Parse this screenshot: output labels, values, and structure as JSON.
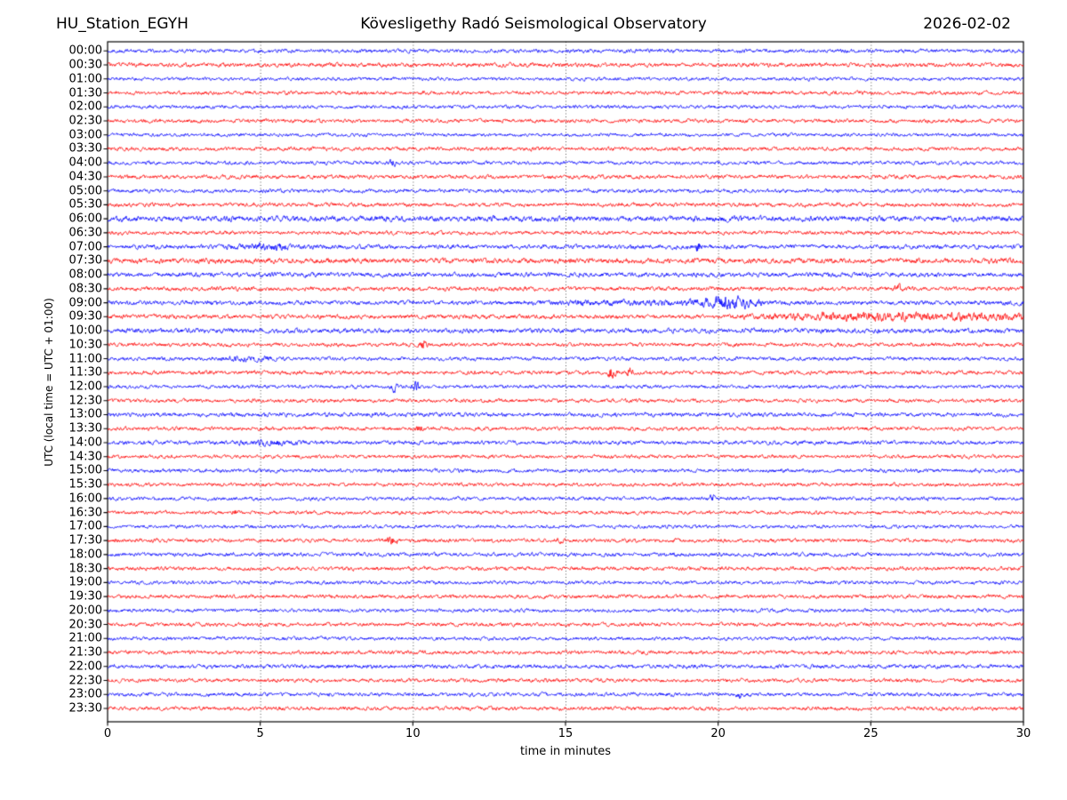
{
  "header": {
    "station": "HU_Station_EGYH",
    "observatory": "Kövesligethy Radó Seismological Observatory",
    "date": "2026-02-02"
  },
  "axes": {
    "x_label": "time in minutes",
    "y_label": "UTC (local time = UTC + 01:00)",
    "x_ticks": [
      "0",
      "5",
      "10",
      "15",
      "20",
      "25",
      "30"
    ],
    "x_tick_values": [
      0,
      5,
      10,
      15,
      20,
      25,
      30
    ],
    "x_range": [
      0,
      30
    ],
    "gridlines_minutes": [
      5,
      10,
      15,
      20,
      25
    ],
    "grid_style": "dotted-vertical"
  },
  "chart_data": {
    "type": "line",
    "subtype": "helicorder-daily-seismogram",
    "title": "Kövesligethy Radó Seismological Observatory",
    "station": "HU_Station_EGYH",
    "date": "2026-02-02",
    "xlabel": "time in minutes",
    "ylabel": "UTC (local time = UTC + 01:00)",
    "x_range": [
      0,
      30
    ],
    "minutes_per_row": 30,
    "rows_count": 48,
    "trace_colors": {
      "blue": "#0000ff",
      "red": "#ff0000"
    },
    "color_rule": "traces alternate: blue on the hour, red on the half hour",
    "rows": [
      {
        "label": "00:00",
        "color": "blue",
        "amp": 1.0
      },
      {
        "label": "00:30",
        "color": "red",
        "amp": 1.1
      },
      {
        "label": "01:00",
        "color": "blue",
        "amp": 0.9
      },
      {
        "label": "01:30",
        "color": "red",
        "amp": 1.0
      },
      {
        "label": "02:00",
        "color": "blue",
        "amp": 0.95
      },
      {
        "label": "02:30",
        "color": "red",
        "amp": 1.0
      },
      {
        "label": "03:00",
        "color": "blue",
        "amp": 0.9
      },
      {
        "label": "03:30",
        "color": "red",
        "amp": 1.0
      },
      {
        "label": "04:00",
        "color": "blue",
        "amp": 0.95
      },
      {
        "label": "04:30",
        "color": "red",
        "amp": 1.05
      },
      {
        "label": "05:00",
        "color": "blue",
        "amp": 1.0
      },
      {
        "label": "05:30",
        "color": "red",
        "amp": 1.05
      },
      {
        "label": "06:00",
        "color": "blue",
        "amp": 1.45
      },
      {
        "label": "06:30",
        "color": "red",
        "amp": 1.0
      },
      {
        "label": "07:00",
        "color": "blue",
        "amp": 1.15
      },
      {
        "label": "07:30",
        "color": "red",
        "amp": 1.35
      },
      {
        "label": "08:00",
        "color": "blue",
        "amp": 1.2
      },
      {
        "label": "08:30",
        "color": "red",
        "amp": 1.1
      },
      {
        "label": "09:00",
        "color": "blue",
        "amp": 1.15
      },
      {
        "label": "09:30",
        "color": "red",
        "amp": 1.15
      },
      {
        "label": "10:00",
        "color": "blue",
        "amp": 1.25
      },
      {
        "label": "10:30",
        "color": "red",
        "amp": 1.0
      },
      {
        "label": "11:00",
        "color": "blue",
        "amp": 1.0
      },
      {
        "label": "11:30",
        "color": "red",
        "amp": 1.05
      },
      {
        "label": "12:00",
        "color": "blue",
        "amp": 0.95
      },
      {
        "label": "12:30",
        "color": "red",
        "amp": 1.0
      },
      {
        "label": "13:00",
        "color": "blue",
        "amp": 1.1
      },
      {
        "label": "13:30",
        "color": "red",
        "amp": 1.0
      },
      {
        "label": "14:00",
        "color": "blue",
        "amp": 1.05
      },
      {
        "label": "14:30",
        "color": "red",
        "amp": 0.95
      },
      {
        "label": "15:00",
        "color": "blue",
        "amp": 1.0
      },
      {
        "label": "15:30",
        "color": "red",
        "amp": 0.95
      },
      {
        "label": "16:00",
        "color": "blue",
        "amp": 0.95
      },
      {
        "label": "16:30",
        "color": "red",
        "amp": 0.95
      },
      {
        "label": "17:00",
        "color": "blue",
        "amp": 0.9
      },
      {
        "label": "17:30",
        "color": "red",
        "amp": 1.0
      },
      {
        "label": "18:00",
        "color": "blue",
        "amp": 1.0
      },
      {
        "label": "18:30",
        "color": "red",
        "amp": 1.05
      },
      {
        "label": "19:00",
        "color": "blue",
        "amp": 0.95
      },
      {
        "label": "19:30",
        "color": "red",
        "amp": 1.0
      },
      {
        "label": "20:00",
        "color": "blue",
        "amp": 0.95
      },
      {
        "label": "20:30",
        "color": "red",
        "amp": 1.0
      },
      {
        "label": "21:00",
        "color": "blue",
        "amp": 0.95
      },
      {
        "label": "21:30",
        "color": "red",
        "amp": 1.0
      },
      {
        "label": "22:00",
        "color": "blue",
        "amp": 1.05
      },
      {
        "label": "22:30",
        "color": "red",
        "amp": 1.0
      },
      {
        "label": "23:00",
        "color": "blue",
        "amp": 1.0
      },
      {
        "label": "23:30",
        "color": "red",
        "amp": 1.0
      }
    ],
    "events": [
      {
        "row": "04:00",
        "t": 9.35,
        "w": 0.12,
        "amp": 1.8,
        "shape": "burst"
      },
      {
        "row": "07:00",
        "t": 5.2,
        "w": 1.0,
        "amp": 0.9,
        "shape": "burst"
      },
      {
        "row": "07:00",
        "t": 19.35,
        "w": 0.08,
        "amp": 2.2,
        "shape": "burst"
      },
      {
        "row": "08:30",
        "t": 25.9,
        "w": 0.1,
        "amp": 1.6,
        "shape": "burst"
      },
      {
        "row": "09:00",
        "t": 17.0,
        "w": 3.0,
        "amp": 0.5,
        "shape": "plateau"
      },
      {
        "row": "09:00",
        "t": 20.4,
        "w": 0.9,
        "amp": 2.2,
        "shape": "burst"
      },
      {
        "row": "09:30",
        "t": 26.0,
        "w": 4.3,
        "amp": 1.1,
        "shape": "plateau"
      },
      {
        "row": "10:30",
        "t": 10.35,
        "w": 0.12,
        "amp": 1.8,
        "shape": "burst"
      },
      {
        "row": "11:00",
        "t": 4.7,
        "w": 0.7,
        "amp": 0.9,
        "shape": "burst"
      },
      {
        "row": "11:30",
        "t": 16.5,
        "w": 0.1,
        "amp": 2.8,
        "shape": "burst"
      },
      {
        "row": "11:30",
        "t": 17.1,
        "w": 0.08,
        "amp": 2.0,
        "shape": "burst"
      },
      {
        "row": "12:00",
        "t": 9.4,
        "w": 0.1,
        "amp": 2.0,
        "shape": "burst"
      },
      {
        "row": "12:00",
        "t": 10.1,
        "w": 0.1,
        "amp": 2.6,
        "shape": "burst"
      },
      {
        "row": "13:30",
        "t": 10.2,
        "w": 0.12,
        "amp": 1.3,
        "shape": "burst"
      },
      {
        "row": "14:00",
        "t": 5.4,
        "w": 0.9,
        "amp": 0.8,
        "shape": "burst"
      },
      {
        "row": "16:00",
        "t": 19.8,
        "w": 0.09,
        "amp": 1.8,
        "shape": "burst"
      },
      {
        "row": "16:30",
        "t": 4.2,
        "w": 0.08,
        "amp": 1.5,
        "shape": "burst"
      },
      {
        "row": "17:30",
        "t": 9.3,
        "w": 0.2,
        "amp": 2.2,
        "shape": "burst"
      },
      {
        "row": "17:30",
        "t": 14.8,
        "w": 0.08,
        "amp": 1.4,
        "shape": "burst"
      },
      {
        "row": "23:00",
        "t": 20.7,
        "w": 0.1,
        "amp": 1.5,
        "shape": "burst"
      }
    ]
  }
}
